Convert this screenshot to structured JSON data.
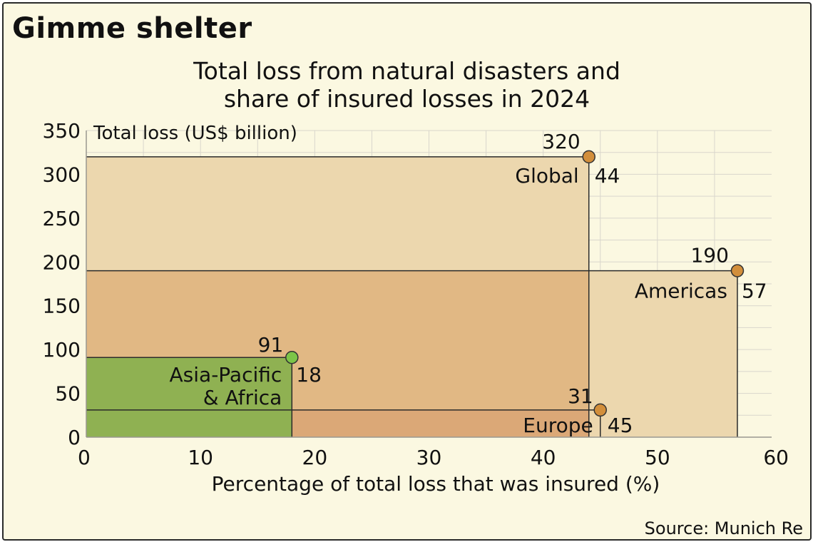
{
  "headline": "Gimme shelter",
  "source": "Source: Munich Re",
  "colors": {
    "background": "#fbf8e1",
    "global_fill": "#ecd7ae",
    "americas_fill": "#e1b884",
    "europe_fill": "#dba877",
    "asia_fill": "#8fb152",
    "orange_marker": "#d28e3b",
    "green_marker": "#7cc548",
    "grid": "#d9d6cc"
  },
  "chart_data": {
    "type": "scatter",
    "title": [
      "Total loss from natural disasters and",
      "share of insured losses in 2024"
    ],
    "xlabel": "Percentage of total loss that was insured (%)",
    "ylabel": "Total loss (US$ billion)",
    "xlim": [
      0,
      60
    ],
    "ylim": [
      0,
      350
    ],
    "x_ticks": [
      "0",
      "10",
      "20",
      "30",
      "40",
      "50",
      "60"
    ],
    "y_ticks": [
      "0",
      "50",
      "100",
      "150",
      "200",
      "250",
      "300",
      "350"
    ],
    "points": [
      {
        "name": "Global",
        "x": 44,
        "y": 320,
        "x_label": "44",
        "y_label": "320",
        "marker": "orange"
      },
      {
        "name": "Americas",
        "x": 57,
        "y": 190,
        "x_label": "57",
        "y_label": "190",
        "marker": "orange"
      },
      {
        "name": "Asia-Pacific\n& Africa",
        "x": 18,
        "y": 91,
        "x_label": "18",
        "y_label": "91",
        "marker": "green"
      },
      {
        "name": "Europe",
        "x": 45,
        "y": 31,
        "x_label": "45",
        "y_label": "31",
        "marker": "orange"
      }
    ]
  }
}
